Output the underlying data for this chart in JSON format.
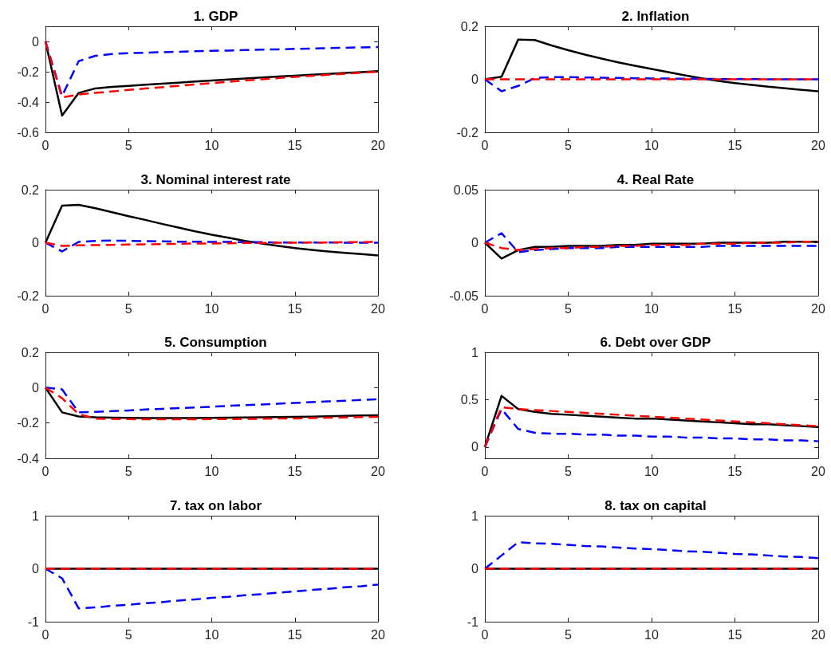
{
  "chart_data": [
    {
      "type": "line",
      "title": "1. GDP",
      "x": [
        0,
        1,
        2,
        3,
        4,
        5,
        6,
        7,
        8,
        9,
        10,
        11,
        12,
        13,
        14,
        15,
        16,
        17,
        18,
        19,
        20
      ],
      "xlim": [
        0,
        20
      ],
      "xticks": [
        0,
        5,
        10,
        15,
        20
      ],
      "ylim": [
        -0.6,
        0.1
      ],
      "yticks": [
        -0.6,
        -0.4,
        -0.2,
        0
      ],
      "marker": "none",
      "series": [
        {
          "color": "#000000",
          "line_style": "solid",
          "values": [
            0,
            -0.49,
            -0.34,
            -0.31,
            -0.3,
            -0.293,
            -0.286,
            -0.279,
            -0.272,
            -0.265,
            -0.258,
            -0.251,
            -0.245,
            -0.238,
            -0.232,
            -0.226,
            -0.22,
            -0.214,
            -0.208,
            -0.202,
            -0.196
          ]
        },
        {
          "color": "#0000ff",
          "line_style": "dashed",
          "values": [
            0,
            -0.36,
            -0.13,
            -0.095,
            -0.083,
            -0.077,
            -0.074,
            -0.071,
            -0.068,
            -0.065,
            -0.062,
            -0.06,
            -0.057,
            -0.054,
            -0.052,
            -0.049,
            -0.047,
            -0.044,
            -0.042,
            -0.039,
            -0.037
          ]
        },
        {
          "color": "#ff0000",
          "line_style": "dashed",
          "values": [
            0,
            -0.37,
            -0.35,
            -0.34,
            -0.33,
            -0.32,
            -0.311,
            -0.302,
            -0.293,
            -0.284,
            -0.275,
            -0.266,
            -0.258,
            -0.25,
            -0.242,
            -0.234,
            -0.227,
            -0.22,
            -0.213,
            -0.206,
            -0.2
          ]
        }
      ]
    },
    {
      "type": "line",
      "title": "2. Inflation",
      "x": [
        0,
        1,
        2,
        3,
        4,
        5,
        6,
        7,
        8,
        9,
        10,
        11,
        12,
        13,
        14,
        15,
        16,
        17,
        18,
        19,
        20
      ],
      "xlim": [
        0,
        20
      ],
      "xticks": [
        0,
        5,
        10,
        15,
        20
      ],
      "ylim": [
        -0.2,
        0.2
      ],
      "yticks": [
        -0.2,
        0,
        0.2
      ],
      "marker": "none",
      "series": [
        {
          "color": "#000000",
          "line_style": "solid",
          "values": [
            0,
            0.01,
            0.15,
            0.148,
            0.128,
            0.11,
            0.093,
            0.078,
            0.064,
            0.051,
            0.039,
            0.027,
            0.015,
            0.004,
            -0.006,
            -0.014,
            -0.021,
            -0.028,
            -0.034,
            -0.04,
            -0.045
          ]
        },
        {
          "color": "#0000ff",
          "line_style": "dashed",
          "values": [
            0,
            -0.045,
            -0.025,
            0.005,
            0.008,
            0.008,
            0.007,
            0.006,
            0.005,
            0.004,
            0.003,
            0.003,
            0.002,
            0.002,
            0.001,
            0.001,
            0.001,
            0,
            0,
            0,
            0
          ]
        },
        {
          "color": "#ff0000",
          "line_style": "dashed",
          "values": [
            0,
            0,
            0,
            0,
            0,
            0,
            0,
            0,
            0,
            0,
            0,
            0,
            0,
            0,
            0,
            0,
            0,
            0,
            0,
            0,
            0
          ]
        }
      ]
    },
    {
      "type": "line",
      "title": "3. Nominal interest rate",
      "x": [
        0,
        1,
        2,
        3,
        4,
        5,
        6,
        7,
        8,
        9,
        10,
        11,
        12,
        13,
        14,
        15,
        16,
        17,
        18,
        19,
        20
      ],
      "xlim": [
        0,
        20
      ],
      "xticks": [
        0,
        5,
        10,
        15,
        20
      ],
      "ylim": [
        -0.2,
        0.2
      ],
      "yticks": [
        -0.2,
        0,
        0.2
      ],
      "marker": "none",
      "series": [
        {
          "color": "#000000",
          "line_style": "solid",
          "values": [
            0,
            0.14,
            0.143,
            0.13,
            0.115,
            0.1,
            0.086,
            0.071,
            0.057,
            0.043,
            0.03,
            0.019,
            0.007,
            -0.003,
            -0.012,
            -0.02,
            -0.027,
            -0.033,
            -0.038,
            -0.043,
            -0.048
          ]
        },
        {
          "color": "#0000ff",
          "line_style": "dashed",
          "values": [
            0,
            -0.033,
            0.003,
            0.007,
            0.008,
            0.007,
            0.006,
            0.005,
            0.004,
            0.004,
            0.003,
            0.003,
            0.002,
            0.002,
            0.001,
            0.001,
            0.001,
            0.001,
            0,
            0,
            0
          ]
        },
        {
          "color": "#ff0000",
          "line_style": "dashed",
          "values": [
            0,
            -0.012,
            -0.01,
            -0.009,
            -0.008,
            -0.007,
            -0.006,
            -0.005,
            -0.004,
            -0.003,
            -0.003,
            -0.002,
            -0.001,
            -0.001,
            0,
            0,
            0.001,
            0.001,
            0.002,
            0.002,
            0.003
          ]
        }
      ]
    },
    {
      "type": "line",
      "title": "4. Real Rate",
      "x": [
        0,
        1,
        2,
        3,
        4,
        5,
        6,
        7,
        8,
        9,
        10,
        11,
        12,
        13,
        14,
        15,
        16,
        17,
        18,
        19,
        20
      ],
      "xlim": [
        0,
        20
      ],
      "xticks": [
        0,
        5,
        10,
        15,
        20
      ],
      "ylim": [
        -0.05,
        0.05
      ],
      "yticks": [
        -0.05,
        0,
        0.05
      ],
      "marker": "none",
      "series": [
        {
          "color": "#000000",
          "line_style": "solid",
          "values": [
            0,
            -0.015,
            -0.007,
            -0.004,
            -0.004,
            -0.003,
            -0.003,
            -0.003,
            -0.002,
            -0.002,
            -0.001,
            -0.001,
            -0.001,
            -0.001,
            0,
            0,
            0,
            0,
            0.001,
            0.001,
            0.001
          ]
        },
        {
          "color": "#0000ff",
          "line_style": "dashed",
          "values": [
            0,
            0.009,
            -0.009,
            -0.007,
            -0.006,
            -0.005,
            -0.005,
            -0.005,
            -0.004,
            -0.004,
            -0.004,
            -0.004,
            -0.004,
            -0.004,
            -0.003,
            -0.003,
            -0.003,
            -0.003,
            -0.003,
            -0.003,
            -0.003
          ]
        },
        {
          "color": "#ff0000",
          "line_style": "dashed",
          "values": [
            0,
            -0.005,
            -0.007,
            -0.006,
            -0.005,
            -0.005,
            -0.004,
            -0.004,
            -0.003,
            -0.003,
            -0.002,
            -0.002,
            -0.002,
            -0.001,
            -0.001,
            -0.001,
            0,
            0,
            0,
            0.001,
            0.001
          ]
        }
      ]
    },
    {
      "type": "line",
      "title": "5. Consumption",
      "x": [
        0,
        1,
        2,
        3,
        4,
        5,
        6,
        7,
        8,
        9,
        10,
        11,
        12,
        13,
        14,
        15,
        16,
        17,
        18,
        19,
        20
      ],
      "xlim": [
        0,
        20
      ],
      "xticks": [
        0,
        5,
        10,
        15,
        20
      ],
      "ylim": [
        -0.4,
        0.2
      ],
      "yticks": [
        -0.4,
        -0.2,
        0,
        0.2
      ],
      "marker": "none",
      "series": [
        {
          "color": "#000000",
          "line_style": "solid",
          "values": [
            0,
            -0.14,
            -0.163,
            -0.168,
            -0.17,
            -0.171,
            -0.172,
            -0.172,
            -0.172,
            -0.172,
            -0.171,
            -0.17,
            -0.169,
            -0.168,
            -0.167,
            -0.165,
            -0.164,
            -0.162,
            -0.16,
            -0.158,
            -0.156
          ]
        },
        {
          "color": "#0000ff",
          "line_style": "dashed",
          "values": [
            0,
            -0.01,
            -0.14,
            -0.137,
            -0.133,
            -0.129,
            -0.124,
            -0.12,
            -0.116,
            -0.112,
            -0.108,
            -0.103,
            -0.099,
            -0.095,
            -0.091,
            -0.087,
            -0.082,
            -0.078,
            -0.074,
            -0.07,
            -0.066
          ]
        },
        {
          "color": "#ff0000",
          "line_style": "dashed",
          "values": [
            0,
            -0.06,
            -0.15,
            -0.175,
            -0.177,
            -0.178,
            -0.179,
            -0.179,
            -0.179,
            -0.179,
            -0.178,
            -0.178,
            -0.177,
            -0.176,
            -0.175,
            -0.174,
            -0.172,
            -0.17,
            -0.169,
            -0.167,
            -0.165
          ]
        }
      ]
    },
    {
      "type": "line",
      "title": "6. Debt over GDP",
      "x": [
        0,
        1,
        2,
        3,
        4,
        5,
        6,
        7,
        8,
        9,
        10,
        11,
        12,
        13,
        14,
        15,
        16,
        17,
        18,
        19,
        20
      ],
      "xlim": [
        0,
        20
      ],
      "xticks": [
        0,
        5,
        10,
        15,
        20
      ],
      "ylim": [
        -0.12,
        1
      ],
      "yticks": [
        0,
        0.5,
        1
      ],
      "marker": "none",
      "series": [
        {
          "color": "#000000",
          "line_style": "solid",
          "values": [
            0,
            0.54,
            0.4,
            0.37,
            0.35,
            0.34,
            0.33,
            0.32,
            0.31,
            0.3,
            0.3,
            0.29,
            0.28,
            0.27,
            0.26,
            0.25,
            0.24,
            0.24,
            0.23,
            0.22,
            0.21
          ]
        },
        {
          "color": "#0000ff",
          "line_style": "dashed",
          "values": [
            0,
            0.4,
            0.19,
            0.15,
            0.14,
            0.14,
            0.13,
            0.13,
            0.12,
            0.12,
            0.11,
            0.11,
            0.1,
            0.1,
            0.09,
            0.09,
            0.08,
            0.08,
            0.07,
            0.07,
            0.06
          ]
        },
        {
          "color": "#ff0000",
          "line_style": "dashed",
          "values": [
            0,
            0.42,
            0.4,
            0.39,
            0.38,
            0.37,
            0.36,
            0.35,
            0.34,
            0.33,
            0.32,
            0.31,
            0.3,
            0.29,
            0.28,
            0.27,
            0.26,
            0.25,
            0.24,
            0.23,
            0.22
          ]
        }
      ]
    },
    {
      "type": "line",
      "title": "7. tax on labor",
      "x": [
        0,
        1,
        2,
        3,
        4,
        5,
        6,
        7,
        8,
        9,
        10,
        11,
        12,
        13,
        14,
        15,
        16,
        17,
        18,
        19,
        20
      ],
      "xlim": [
        0,
        20
      ],
      "xticks": [
        0,
        5,
        10,
        15,
        20
      ],
      "ylim": [
        -1,
        1
      ],
      "yticks": [
        -1,
        0,
        1
      ],
      "marker": "none",
      "series": [
        {
          "color": "#000000",
          "line_style": "solid",
          "values": [
            0,
            0,
            0,
            0,
            0,
            0,
            0,
            0,
            0,
            0,
            0,
            0,
            0,
            0,
            0,
            0,
            0,
            0,
            0,
            0,
            0
          ]
        },
        {
          "color": "#0000ff",
          "line_style": "dashed",
          "values": [
            0,
            -0.18,
            -0.75,
            -0.73,
            -0.7,
            -0.68,
            -0.65,
            -0.63,
            -0.6,
            -0.58,
            -0.55,
            -0.53,
            -0.5,
            -0.48,
            -0.45,
            -0.43,
            -0.4,
            -0.38,
            -0.35,
            -0.33,
            -0.3
          ]
        },
        {
          "color": "#ff0000",
          "line_style": "dashed",
          "values": [
            0,
            0,
            0,
            0,
            0,
            0,
            0,
            0,
            0,
            0,
            0,
            0,
            0,
            0,
            0,
            0,
            0,
            0,
            0,
            0,
            0
          ]
        }
      ]
    },
    {
      "type": "line",
      "title": "8. tax on capital",
      "x": [
        0,
        1,
        2,
        3,
        4,
        5,
        6,
        7,
        8,
        9,
        10,
        11,
        12,
        13,
        14,
        15,
        16,
        17,
        18,
        19,
        20
      ],
      "xlim": [
        0,
        20
      ],
      "xticks": [
        0,
        5,
        10,
        15,
        20
      ],
      "ylim": [
        -1,
        1
      ],
      "yticks": [
        -1,
        0,
        1
      ],
      "marker": "none",
      "series": [
        {
          "color": "#000000",
          "line_style": "solid",
          "values": [
            0,
            0,
            0,
            0,
            0,
            0,
            0,
            0,
            0,
            0,
            0,
            0,
            0,
            0,
            0,
            0,
            0,
            0,
            0,
            0,
            0
          ]
        },
        {
          "color": "#0000ff",
          "line_style": "dashed",
          "values": [
            0,
            0.25,
            0.5,
            0.48,
            0.47,
            0.45,
            0.43,
            0.42,
            0.4,
            0.38,
            0.37,
            0.35,
            0.33,
            0.32,
            0.3,
            0.28,
            0.27,
            0.25,
            0.23,
            0.22,
            0.2
          ]
        },
        {
          "color": "#ff0000",
          "line_style": "dashed",
          "values": [
            0,
            0,
            0,
            0,
            0,
            0,
            0,
            0,
            0,
            0,
            0,
            0,
            0,
            0,
            0,
            0,
            0,
            0,
            0,
            0,
            0
          ]
        }
      ]
    }
  ]
}
